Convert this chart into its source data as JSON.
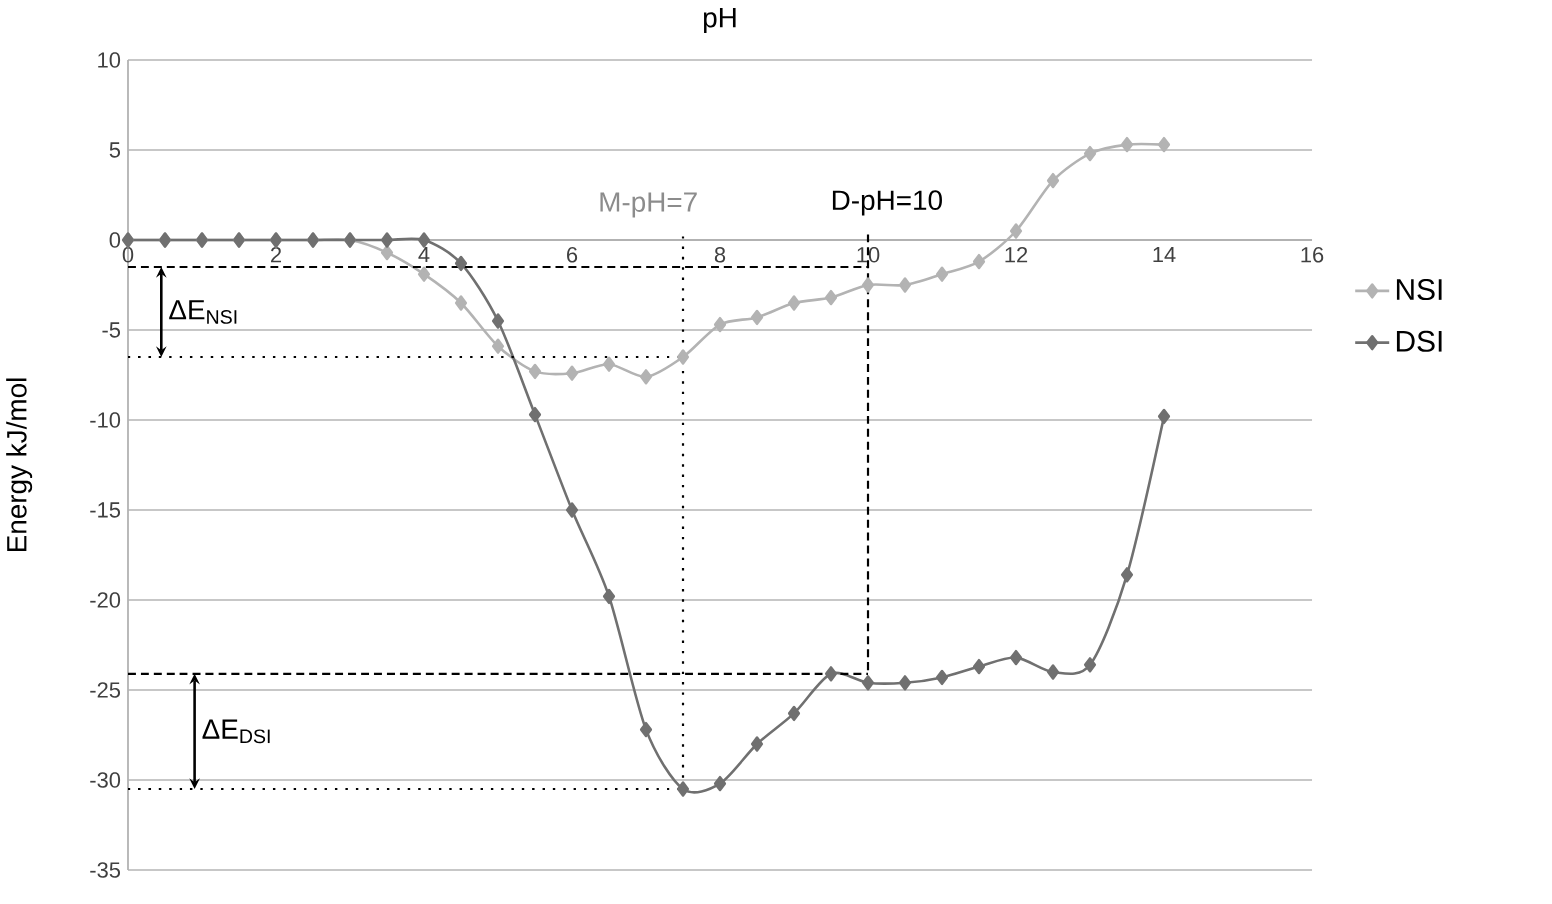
{
  "chart_data": {
    "type": "line",
    "title": "pH",
    "ylabel": "Energy kJ/mol",
    "xlim": [
      0,
      16
    ],
    "ylim": [
      -35,
      10
    ],
    "xticks": [
      0,
      2,
      4,
      6,
      8,
      10,
      12,
      14,
      16
    ],
    "yticks": [
      -35,
      -30,
      -25,
      -20,
      -15,
      -10,
      -5,
      0,
      5,
      10
    ],
    "grid": "y",
    "legend": "right",
    "marker": "diamond",
    "series": [
      {
        "name": "NSI",
        "color": "#b3b3b3",
        "x": [
          0,
          0.5,
          1,
          1.5,
          2,
          2.5,
          3,
          3.5,
          4,
          4.5,
          5,
          5.5,
          6,
          6.5,
          7,
          7.5,
          8,
          8.5,
          9,
          9.5,
          10,
          10.5,
          11,
          11.5,
          12,
          12.5,
          13,
          13.5,
          14
        ],
        "values": [
          0,
          0,
          0,
          0,
          0,
          0,
          0,
          -0.7,
          -1.9,
          -3.5,
          -5.9,
          -7.3,
          -7.4,
          -6.9,
          -7.6,
          -6.5,
          -4.7,
          -4.3,
          -3.5,
          -3.2,
          -2.5,
          -2.5,
          -1.9,
          -1.2,
          0.5,
          3.3,
          4.8,
          5.3,
          5.3
        ]
      },
      {
        "name": "DSI",
        "color": "#707070",
        "x": [
          0,
          0.5,
          1,
          1.5,
          2,
          2.5,
          3,
          3.5,
          4,
          4.5,
          5,
          5.5,
          6,
          6.5,
          7,
          7.5,
          8,
          8.5,
          9,
          9.5,
          10,
          10.5,
          11,
          11.5,
          12,
          12.5,
          13,
          13.5,
          14
        ],
        "values": [
          0,
          0,
          0,
          0,
          0,
          0,
          0,
          0,
          0,
          -1.3,
          -4.5,
          -9.7,
          -15,
          -19.8,
          -27.2,
          -30.5,
          -30.2,
          -28,
          -26.3,
          -24.1,
          -24.6,
          -24.6,
          -24.3,
          -23.7,
          -23.2,
          -24,
          -23.6,
          -18.6,
          -9.8
        ]
      },
      {
        "type": "line",
        "color": "#000000",
        "marker": "none",
        "line_style": "dashed",
        "x": [
          0,
          10
        ],
        "values": [
          -1.5,
          -1.5
        ]
      },
      {
        "type": "line",
        "color": "#000000",
        "marker": "none",
        "line_style": "dotted",
        "x": [
          0,
          7.5
        ],
        "values": [
          -6.5,
          -6.5
        ]
      },
      {
        "type": "line",
        "color": "#000000",
        "marker": "none",
        "line_style": "dashed",
        "x": [
          0,
          10
        ],
        "values": [
          -24.1,
          -24.1
        ]
      },
      {
        "type": "line",
        "color": "#000000",
        "marker": "none",
        "line_style": "dotted",
        "x": [
          0,
          7.5
        ],
        "values": [
          -30.5,
          -30.5
        ]
      },
      {
        "type": "line",
        "color": "#000000",
        "marker": "none",
        "line_style": "dashed",
        "x": [
          10,
          10
        ],
        "values": [
          0.3,
          -24.1
        ]
      },
      {
        "type": "line",
        "color": "#000000",
        "marker": "none",
        "line_style": "dotted",
        "x": [
          7.5,
          7.5
        ],
        "values": [
          0.2,
          -30.5
        ]
      }
    ],
    "annotations": [
      "M-pH=7",
      "D-pH=10",
      "ΔE$_{NSI}$",
      "ΔE$_{DSI}$"
    ]
  }
}
